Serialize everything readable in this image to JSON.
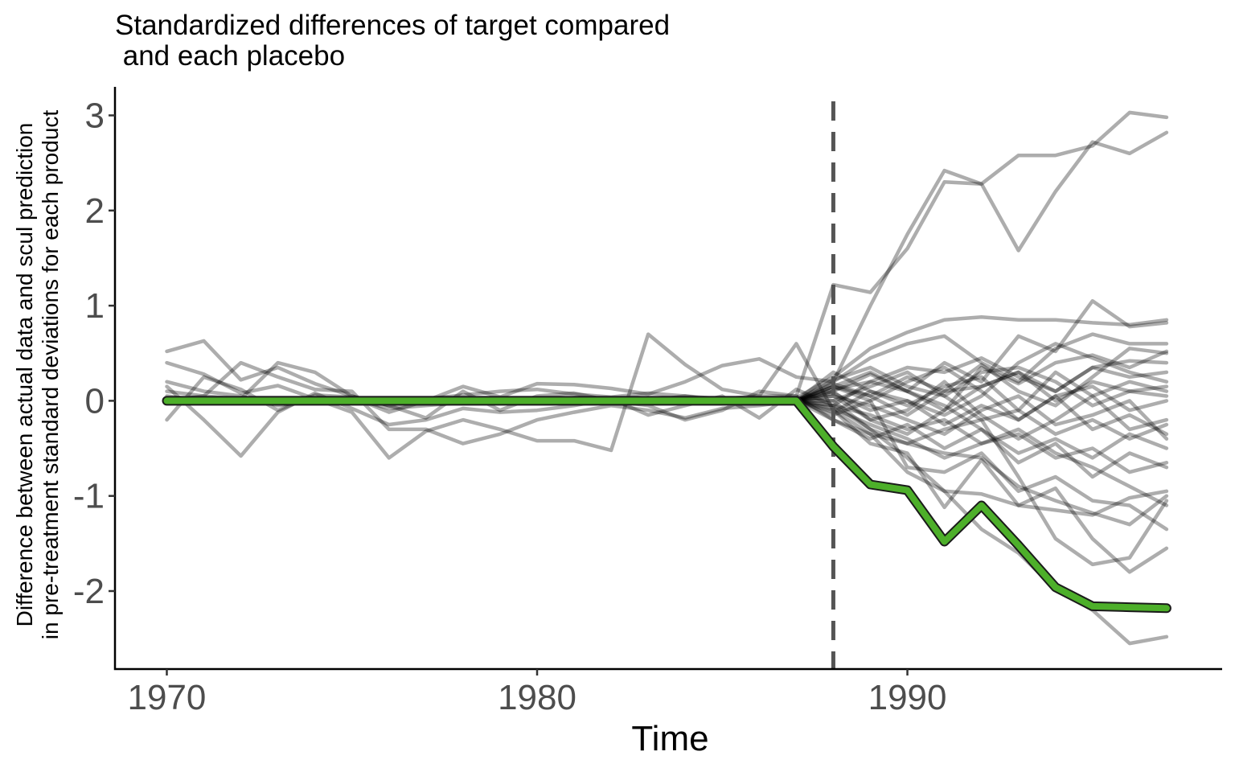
{
  "chart_data": {
    "type": "line",
    "title": "Standardized differences of target compared\n and each placebo",
    "xlabel": "Time",
    "ylabel": "Difference between actual data and scul prediction\nin pre-treatment standard deviations for each product",
    "xlim": [
      1968.6,
      1998.5
    ],
    "ylim": [
      -2.82,
      3.3
    ],
    "x_ticks": [
      1970,
      1980,
      1990
    ],
    "y_ticks": [
      -2,
      -1,
      0,
      1,
      2,
      3
    ],
    "treatment_time": 1988,
    "grid": false,
    "legend": "none",
    "colors": {
      "target": "#4daf2a",
      "placebo": "#000000",
      "treatment_line": "#555555"
    },
    "x": [
      1970,
      1971,
      1972,
      1973,
      1974,
      1975,
      1976,
      1977,
      1978,
      1979,
      1980,
      1981,
      1982,
      1983,
      1984,
      1985,
      1986,
      1987,
      1988,
      1989,
      1990,
      1991,
      1992,
      1993,
      1994,
      1995,
      1996,
      1997
    ],
    "target": {
      "values": [
        0,
        0,
        0,
        0,
        0,
        0,
        0,
        0,
        0,
        0,
        0,
        0,
        0,
        0,
        0,
        0,
        0,
        0,
        -0.48,
        -0.88,
        -0.94,
        -1.48,
        -1.1,
        -1.52,
        -1.96,
        -2.16,
        -2.17,
        -2.18
      ]
    },
    "placebos": [
      [
        0.52,
        0.63,
        0.22,
        0.35,
        0.18,
        0.05,
        -0.05,
        0.02,
        0.06,
        0.1,
        0.12,
        0.07,
        0.04,
        0.08,
        0.05,
        0.02,
        0.05,
        0.05,
        1.22,
        1.14,
        1.6,
        2.3,
        2.28,
        1.58,
        2.2,
        2.72,
        2.6,
        2.82
      ],
      [
        -0.2,
        0.25,
        0.12,
        -0.1,
        0.06,
        0.04,
        -0.12,
        0.0,
        0.15,
        0.04,
        0.18,
        0.17,
        0.13,
        0.07,
        0.2,
        0.37,
        0.44,
        0.25,
        0.2,
        1.0,
        1.75,
        2.42,
        2.28,
        2.58,
        2.58,
        2.68,
        3.03,
        2.98
      ],
      [
        0.4,
        0.28,
        0.08,
        0.16,
        0.02,
        -0.12,
        -0.6,
        -0.32,
        -0.2,
        -0.3,
        -0.42,
        -0.42,
        -0.52,
        0.7,
        0.38,
        0.12,
        0.05,
        0.6,
        -0.1,
        -0.45,
        -0.55,
        -1.12,
        -0.62,
        -1.1,
        -0.92,
        -1.45,
        -1.8,
        -1.55
      ],
      [
        0.15,
        -0.2,
        -0.58,
        -0.12,
        0.08,
        -0.08,
        -0.25,
        -0.2,
        -0.08,
        -0.12,
        -0.1,
        -0.05,
        0.02,
        -0.15,
        -0.05,
        0.05,
        -0.18,
        0.12,
        -0.05,
        -0.3,
        -0.6,
        -0.95,
        -1.35,
        -1.6,
        -1.98,
        -2.2,
        -2.55,
        -2.48
      ],
      [
        0.0,
        0.05,
        0.4,
        0.25,
        0.12,
        0.1,
        -0.3,
        -0.3,
        -0.45,
        -0.35,
        -0.2,
        -0.12,
        -0.05,
        -0.1,
        -0.18,
        -0.08,
        -0.05,
        0.0,
        0.15,
        0.0,
        -0.7,
        -0.75,
        -0.55,
        -0.95,
        -0.8,
        -1.05,
        -1.1,
        -1.35
      ],
      [
        0.1,
        0.05,
        0.02,
        0.4,
        0.3,
        0.05,
        -0.05,
        -0.18,
        0.1,
        -0.1,
        0.05,
        0.08,
        0.0,
        -0.05,
        -0.2,
        -0.1,
        0.1,
        0.05,
        -0.2,
        -0.35,
        -0.45,
        -0.3,
        -0.2,
        -0.8,
        -1.45,
        -1.72,
        -1.65,
        -1.05
      ],
      [
        0.2,
        0.1,
        0.05,
        -0.05,
        0.0,
        0.02,
        -0.08,
        -0.05,
        -0.02,
        0.0,
        0.02,
        0.0,
        -0.02,
        0.0,
        0.05,
        0.0,
        0.02,
        0.03,
        0.25,
        0.55,
        0.72,
        0.85,
        0.88,
        0.85,
        0.85,
        0.82,
        0.8,
        0.85
      ],
      [
        0.05,
        0.0,
        0.0,
        0.02,
        -0.02,
        0.0,
        0.0,
        -0.02,
        0.0,
        0.02,
        0.0,
        -0.02,
        0.0,
        0.0,
        0.02,
        -0.02,
        0.0,
        0.0,
        0.2,
        0.45,
        0.6,
        0.68,
        0.4,
        0.2,
        0.55,
        0.7,
        0.6,
        0.6
      ],
      [
        0.0,
        0.02,
        -0.02,
        0.0,
        0.02,
        0.0,
        -0.02,
        0.0,
        0.02,
        0.0,
        -0.02,
        0.0,
        0.02,
        0.0,
        -0.02,
        0.0,
        0.02,
        0.0,
        0.15,
        0.3,
        0.1,
        0.4,
        0.2,
        0.68,
        0.52,
        1.05,
        0.78,
        0.82
      ],
      [
        0.02,
        0.0,
        0.02,
        -0.02,
        0.0,
        0.02,
        0.0,
        -0.02,
        0.0,
        0.02,
        0.0,
        -0.02,
        0.0,
        0.02,
        0.0,
        -0.02,
        0.0,
        0.0,
        0.0,
        -0.3,
        -0.45,
        -0.55,
        -0.6,
        -0.9,
        -1.05,
        -1.18,
        -1.3,
        -1.0
      ],
      [
        0.0,
        0.0,
        0.02,
        0.0,
        -0.02,
        0.0,
        0.02,
        0.0,
        -0.02,
        0.0,
        0.02,
        0.0,
        -0.02,
        0.0,
        0.02,
        0.0,
        0.0,
        0.0,
        -0.1,
        -0.35,
        -0.75,
        -0.95,
        -0.98,
        -1.1,
        -1.15,
        -1.2,
        -1.02,
        -0.95
      ],
      [
        0.0,
        0.02,
        0.0,
        -0.02,
        0.0,
        0.02,
        0.0,
        -0.02,
        0.0,
        0.02,
        0.0,
        -0.02,
        0.0,
        0.02,
        0.0,
        -0.02,
        0.0,
        0.0,
        0.1,
        0.28,
        0.1,
        -0.1,
        0.35,
        0.18,
        0.4,
        0.48,
        0.35,
        0.52
      ],
      [
        0.02,
        0.0,
        -0.02,
        0.0,
        0.02,
        0.0,
        -0.02,
        0.0,
        0.02,
        0.0,
        -0.02,
        0.0,
        0.02,
        0.0,
        -0.02,
        0.0,
        0.0,
        0.0,
        0.05,
        -0.2,
        -0.1,
        0.2,
        -0.15,
        -0.4,
        -0.2,
        0.05,
        -0.3,
        -0.2
      ],
      [
        0.0,
        0.0,
        0.0,
        0.02,
        0.0,
        -0.02,
        0.0,
        0.0,
        0.02,
        0.0,
        -0.02,
        0.0,
        0.0,
        0.02,
        0.0,
        -0.02,
        0.0,
        0.0,
        0.12,
        0.2,
        0.35,
        0.3,
        0.45,
        0.25,
        0.1,
        0.35,
        0.42,
        0.4
      ],
      [
        0.02,
        0.02,
        0.0,
        0.0,
        -0.02,
        -0.02,
        0.0,
        0.0,
        0.02,
        0.02,
        0.0,
        0.0,
        -0.02,
        -0.02,
        0.0,
        0.0,
        0.0,
        0.0,
        -0.05,
        -0.15,
        -0.3,
        -0.2,
        -0.45,
        -0.35,
        -0.6,
        -0.5,
        -0.75,
        -0.65
      ],
      [
        0.0,
        0.0,
        0.02,
        0.02,
        0.0,
        0.0,
        -0.02,
        -0.02,
        0.0,
        0.0,
        0.02,
        0.02,
        0.0,
        0.0,
        -0.02,
        -0.02,
        0.0,
        0.0,
        0.18,
        0.05,
        0.25,
        0.1,
        0.15,
        0.3,
        0.0,
        0.2,
        0.1,
        0.15
      ],
      [
        0.02,
        0.0,
        0.0,
        -0.02,
        0.0,
        0.0,
        0.02,
        0.0,
        0.0,
        -0.02,
        0.0,
        0.0,
        0.02,
        0.0,
        0.0,
        -0.02,
        0.0,
        0.0,
        -0.12,
        0.1,
        -0.05,
        0.15,
        0.25,
        -0.1,
        0.3,
        0.05,
        0.2,
        0.1
      ],
      [
        0.0,
        0.02,
        0.0,
        0.0,
        -0.02,
        0.0,
        0.0,
        0.02,
        0.0,
        0.0,
        -0.02,
        0.0,
        0.0,
        0.02,
        0.0,
        0.0,
        0.0,
        0.0,
        0.08,
        -0.1,
        0.0,
        -0.25,
        -0.05,
        -0.2,
        0.05,
        -0.3,
        -0.15,
        -0.35
      ],
      [
        0.0,
        0.0,
        0.02,
        0.0,
        0.0,
        -0.02,
        0.0,
        0.0,
        0.02,
        0.0,
        0.0,
        -0.02,
        0.0,
        0.0,
        0.02,
        0.0,
        0.0,
        0.0,
        -0.2,
        -0.4,
        -0.25,
        -0.5,
        -0.3,
        -0.65,
        -0.45,
        -0.8,
        -0.55,
        -0.7
      ],
      [
        0.02,
        0.0,
        0.0,
        0.0,
        0.02,
        0.0,
        0.0,
        0.0,
        -0.02,
        0.0,
        0.0,
        0.0,
        0.02,
        0.0,
        0.0,
        0.0,
        0.0,
        0.0,
        0.22,
        0.35,
        0.15,
        0.05,
        0.3,
        0.35,
        0.2,
        -0.05,
        0.1,
        0.05
      ],
      [
        0.0,
        0.0,
        0.0,
        0.02,
        0.0,
        0.0,
        0.0,
        -0.02,
        0.0,
        0.0,
        0.0,
        0.02,
        0.0,
        0.0,
        0.0,
        -0.02,
        0.0,
        0.0,
        0.0,
        0.15,
        0.3,
        0.05,
        -0.2,
        -0.1,
        -0.35,
        -0.2,
        -0.4,
        -0.25
      ],
      [
        0.01,
        0.01,
        0.0,
        0.0,
        0.01,
        0.01,
        0.0,
        0.0,
        0.01,
        0.01,
        0.0,
        0.0,
        0.01,
        0.01,
        0.0,
        0.0,
        0.0,
        0.0,
        -0.08,
        -0.25,
        -0.4,
        -0.6,
        -0.45,
        -0.3,
        -0.55,
        -0.7,
        -0.9,
        -1.1
      ],
      [
        0.0,
        0.01,
        0.01,
        0.0,
        0.0,
        0.01,
        0.01,
        0.0,
        0.0,
        0.01,
        0.01,
        0.0,
        0.0,
        0.01,
        0.01,
        0.0,
        0.0,
        0.0,
        0.15,
        0.05,
        -0.15,
        0.1,
        0.38,
        0.1,
        -0.05,
        0.25,
        0.55,
        0.5
      ],
      [
        0.01,
        0.0,
        0.01,
        0.0,
        0.01,
        0.0,
        0.01,
        0.0,
        0.01,
        0.0,
        0.01,
        0.0,
        0.01,
        0.0,
        0.01,
        0.0,
        0.0,
        0.0,
        -0.15,
        0.0,
        0.2,
        0.35,
        0.1,
        -0.2,
        0.05,
        0.15,
        -0.1,
        0.0
      ],
      [
        0.0,
        0.01,
        0.0,
        0.01,
        0.0,
        0.01,
        0.0,
        0.01,
        0.0,
        0.01,
        0.0,
        0.01,
        0.0,
        0.01,
        0.0,
        0.01,
        0.0,
        0.0,
        0.05,
        -0.05,
        -0.2,
        -0.35,
        -0.1,
        0.05,
        -0.25,
        -0.15,
        0.0,
        -0.4
      ],
      [
        0.01,
        0.01,
        0.01,
        0.0,
        0.0,
        0.0,
        0.01,
        0.01,
        0.01,
        0.0,
        0.0,
        0.0,
        0.01,
        0.01,
        0.01,
        0.0,
        0.0,
        0.0,
        0.3,
        0.1,
        0.0,
        -0.15,
        0.05,
        0.4,
        0.6,
        0.45,
        0.3,
        0.2
      ],
      [
        0.0,
        0.0,
        0.01,
        0.01,
        0.01,
        0.0,
        0.0,
        0.0,
        0.01,
        0.01,
        0.01,
        0.0,
        0.0,
        0.0,
        0.01,
        0.01,
        0.0,
        0.0,
        -0.05,
        0.2,
        0.1,
        -0.05,
        -0.3,
        -0.55,
        -0.4,
        -0.6,
        -0.35,
        -0.5
      ],
      [
        0.01,
        0.0,
        0.0,
        0.01,
        0.0,
        0.0,
        0.01,
        0.0,
        0.0,
        0.01,
        0.0,
        0.0,
        0.01,
        0.0,
        0.0,
        0.01,
        0.0,
        0.0,
        0.1,
        -0.2,
        -0.35,
        -0.1,
        0.15,
        0.3,
        0.1,
        0.35,
        0.25,
        0.3
      ]
    ]
  }
}
